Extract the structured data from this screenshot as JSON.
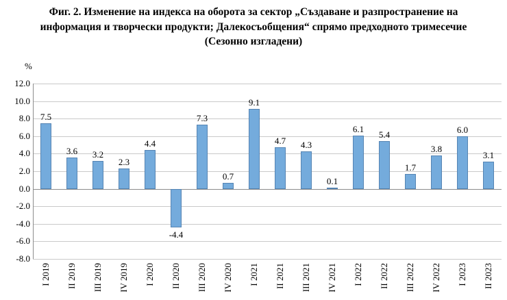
{
  "title": "Фиг. 2. Изменение на индекса на оборота за сектор „Създаване и разпространение на\nинформация и творчески продукти; Далекосъобщения“ спрямо предходното тримесечие\n(Сезонно изгладени)",
  "chart_data": {
    "type": "bar",
    "title": "Фиг. 2. Изменение на индекса на оборота за сектор „Създаване и разпространение на информация и творчески продукти; Далекосъобщения“ спрямо предходното тримесечие (Сезонно изгладени)",
    "unit_label": "%",
    "categories": [
      "I 2019",
      "II 2019",
      "III 2019",
      "IV 2019",
      "I 2020",
      "II 2020",
      "III 2020",
      "IV 2020",
      "I 2021",
      "II 2021",
      "III 2021",
      "IV 2021",
      "I 2022",
      "II 2022",
      "III 2022",
      "IV 2022",
      "I 2023",
      "II 2023"
    ],
    "values": [
      7.5,
      3.6,
      3.2,
      2.3,
      4.4,
      -4.4,
      7.3,
      0.7,
      9.1,
      4.7,
      4.3,
      0.1,
      6.1,
      5.4,
      1.7,
      3.8,
      6.0,
      3.1
    ],
    "xlabel": "",
    "ylabel": "%",
    "ylim": [
      -8,
      12
    ],
    "ytick_step": 2,
    "grid": true,
    "legend": "none",
    "bar_color": "#74abdc",
    "value_label_decimals": 1
  }
}
